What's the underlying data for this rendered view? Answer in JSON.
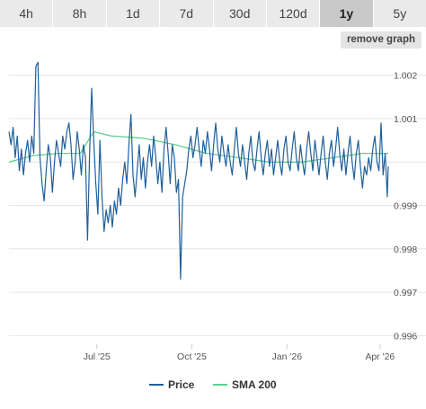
{
  "tabs": [
    {
      "label": "4h",
      "active": false
    },
    {
      "label": "8h",
      "active": false
    },
    {
      "label": "1d",
      "active": false
    },
    {
      "label": "7d",
      "active": false
    },
    {
      "label": "30d",
      "active": false
    },
    {
      "label": "120d",
      "active": false
    },
    {
      "label": "1y",
      "active": true
    },
    {
      "label": "5y",
      "active": false
    }
  ],
  "remove_graph_label": "remove graph",
  "colors": {
    "price": "#1f5f9a",
    "sma": "#5ed08f",
    "grid": "#e6e6e6"
  },
  "chart_data": {
    "type": "line",
    "title": "",
    "xlabel": "",
    "ylabel": "",
    "ylim": [
      0.9958,
      1.00245
    ],
    "xlim": [
      "2025-04-07",
      "2026-04-09"
    ],
    "y_ticks": [
      0.996,
      0.997,
      0.998,
      0.999,
      1.0,
      1.001,
      1.002
    ],
    "y_tick_labels": [
      "0.996",
      "0.997",
      "0.998",
      "0.999",
      "",
      "1.001",
      "1.002"
    ],
    "x_ticks": [
      {
        "date": "2025-07-01",
        "label": "Jul '25"
      },
      {
        "date": "2025-10-01",
        "label": "Oct '25"
      },
      {
        "date": "2026-01-01",
        "label": "Jan '26"
      },
      {
        "date": "2026-04-01",
        "label": "Apr '26"
      }
    ],
    "grid": true,
    "legend": "bottom",
    "series": [
      {
        "name": "Price",
        "points": [
          [
            "2025-04-07",
            1.0007
          ],
          [
            "2025-04-09",
            1.0004
          ],
          [
            "2025-04-11",
            1.0008
          ],
          [
            "2025-04-13",
            1.0001
          ],
          [
            "2025-04-15",
            1.0006
          ],
          [
            "2025-04-17",
            0.9998
          ],
          [
            "2025-04-19",
            1.0003
          ],
          [
            "2025-04-21",
            0.9997
          ],
          [
            "2025-04-23",
            1.0002
          ],
          [
            "2025-04-25",
            1.0005
          ],
          [
            "2025-04-27",
            1.0
          ],
          [
            "2025-04-29",
            1.0006
          ],
          [
            "2025-05-01",
            1.0002
          ],
          [
            "2025-05-03",
            1.0022
          ],
          [
            "2025-05-05",
            1.0023
          ],
          [
            "2025-05-07",
            1.0001
          ],
          [
            "2025-05-09",
            0.9995
          ],
          [
            "2025-05-11",
            0.9991
          ],
          [
            "2025-05-13",
            0.9998
          ],
          [
            "2025-05-15",
            1.0004
          ],
          [
            "2025-05-17",
            1.0001
          ],
          [
            "2025-05-19",
            0.9993
          ],
          [
            "2025-05-21",
            1.0
          ],
          [
            "2025-05-23",
            1.0005
          ],
          [
            "2025-05-25",
            1.0002
          ],
          [
            "2025-05-27",
            0.9999
          ],
          [
            "2025-05-29",
            1.0006
          ],
          [
            "2025-05-31",
            1.0003
          ],
          [
            "2025-06-02",
            1.0007
          ],
          [
            "2025-06-04",
            1.0009
          ],
          [
            "2025-06-06",
            1.0004
          ],
          [
            "2025-06-08",
            0.9996
          ],
          [
            "2025-06-10",
            1.0
          ],
          [
            "2025-06-12",
            1.0007
          ],
          [
            "2025-06-14",
            1.0003
          ],
          [
            "2025-06-16",
            0.9997
          ],
          [
            "2025-06-18",
            1.0004
          ],
          [
            "2025-06-20",
            1.0001
          ],
          [
            "2025-06-22",
            0.9982
          ],
          [
            "2025-06-24",
            1.0002
          ],
          [
            "2025-06-26",
            1.0017
          ],
          [
            "2025-06-28",
            1.0005
          ],
          [
            "2025-06-30",
            0.9995
          ],
          [
            "2025-07-02",
            0.9988
          ],
          [
            "2025-07-04",
            1.0005
          ],
          [
            "2025-07-06",
            0.9992
          ],
          [
            "2025-07-08",
            0.9984
          ],
          [
            "2025-07-10",
            0.9989
          ],
          [
            "2025-07-12",
            0.9986
          ],
          [
            "2025-07-14",
            0.999
          ],
          [
            "2025-07-16",
            0.9985
          ],
          [
            "2025-07-18",
            0.9991
          ],
          [
            "2025-07-20",
            0.9988
          ],
          [
            "2025-07-22",
            0.9994
          ],
          [
            "2025-07-24",
            0.999
          ],
          [
            "2025-07-26",
            0.9996
          ],
          [
            "2025-07-28",
            1.0
          ],
          [
            "2025-07-30",
            0.9995
          ],
          [
            "2025-08-01",
            1.0004
          ],
          [
            "2025-08-03",
            1.0011
          ],
          [
            "2025-08-05",
            0.9997
          ],
          [
            "2025-08-07",
            0.9992
          ],
          [
            "2025-08-09",
            0.9998
          ],
          [
            "2025-08-11",
            1.0004
          ],
          [
            "2025-08-13",
            0.9996
          ],
          [
            "2025-08-15",
            1.0001
          ],
          [
            "2025-08-17",
            0.9994
          ],
          [
            "2025-08-19",
            1.0
          ],
          [
            "2025-08-21",
            1.0004
          ],
          [
            "2025-08-23",
            0.9999
          ],
          [
            "2025-08-25",
            1.0006
          ],
          [
            "2025-08-27",
            1.0001
          ],
          [
            "2025-08-29",
            0.9995
          ],
          [
            "2025-08-31",
            1.0
          ],
          [
            "2025-09-02",
            0.9993
          ],
          [
            "2025-09-04",
            1.0003
          ],
          [
            "2025-09-06",
            1.0008
          ],
          [
            "2025-09-08",
            1.0002
          ],
          [
            "2025-09-10",
            0.9995
          ],
          [
            "2025-09-12",
            1.0004
          ],
          [
            "2025-09-14",
            1.0001
          ],
          [
            "2025-09-16",
            0.9993
          ],
          [
            "2025-09-18",
            0.9996
          ],
          [
            "2025-09-20",
            0.9973
          ],
          [
            "2025-09-22",
            0.9992
          ],
          [
            "2025-09-24",
            0.9995
          ],
          [
            "2025-09-26",
            0.9998
          ],
          [
            "2025-09-28",
            1.0003
          ],
          [
            "2025-09-30",
            1.0006
          ],
          [
            "2025-10-02",
            1.0001
          ],
          [
            "2025-10-04",
            1.0004
          ],
          [
            "2025-10-06",
            1.0008
          ],
          [
            "2025-10-08",
            1.0003
          ],
          [
            "2025-10-10",
            0.9999
          ],
          [
            "2025-10-12",
            1.0005
          ],
          [
            "2025-10-14",
            1.0002
          ],
          [
            "2025-10-16",
            1.0007
          ],
          [
            "2025-10-18",
            1.0003
          ],
          [
            "2025-10-20",
            0.9998
          ],
          [
            "2025-10-22",
            1.0004
          ],
          [
            "2025-10-24",
            1.0009
          ],
          [
            "2025-10-26",
            1.0003
          ],
          [
            "2025-10-28",
            1.0
          ],
          [
            "2025-10-30",
            1.0006
          ],
          [
            "2025-11-01",
            1.0002
          ],
          [
            "2025-11-03",
            0.9999
          ],
          [
            "2025-11-05",
            1.0004
          ],
          [
            "2025-11-07",
            1.0
          ],
          [
            "2025-11-09",
            0.9997
          ],
          [
            "2025-11-11",
            1.0003
          ],
          [
            "2025-11-13",
            1.0008
          ],
          [
            "2025-11-15",
            1.0002
          ],
          [
            "2025-11-17",
            0.9999
          ],
          [
            "2025-11-19",
            1.0004
          ],
          [
            "2025-11-21",
            1.0
          ],
          [
            "2025-11-23",
            0.9996
          ],
          [
            "2025-11-25",
            1.0002
          ],
          [
            "2025-11-27",
            1.0006
          ],
          [
            "2025-11-29",
            1.0
          ],
          [
            "2025-12-01",
            0.9998
          ],
          [
            "2025-12-03",
            1.0003
          ],
          [
            "2025-12-05",
            1.0007
          ],
          [
            "2025-12-07",
            1.0001
          ],
          [
            "2025-12-09",
            0.9997
          ],
          [
            "2025-12-11",
            1.0002
          ],
          [
            "2025-12-13",
            1.0005
          ],
          [
            "2025-12-15",
            0.9999
          ],
          [
            "2025-12-17",
            1.0003
          ],
          [
            "2025-12-19",
            0.9997
          ],
          [
            "2025-12-21",
            1.0001
          ],
          [
            "2025-12-23",
            1.0005
          ],
          [
            "2025-12-25",
            1.0
          ],
          [
            "2025-12-27",
            0.9997
          ],
          [
            "2025-12-29",
            1.0003
          ],
          [
            "2025-12-31",
            1.0006
          ],
          [
            "2026-01-02",
            1.0
          ],
          [
            "2026-01-04",
            0.9998
          ],
          [
            "2026-01-06",
            1.0003
          ],
          [
            "2026-01-08",
            1.0007
          ],
          [
            "2026-01-10",
            1.0001
          ],
          [
            "2026-01-12",
            0.9998
          ],
          [
            "2026-01-14",
            1.0004
          ],
          [
            "2026-01-16",
            1.0
          ],
          [
            "2026-01-18",
            0.9997
          ],
          [
            "2026-01-20",
            1.0003
          ],
          [
            "2026-01-22",
            1.0007
          ],
          [
            "2026-01-24",
            1.0002
          ],
          [
            "2026-01-26",
            0.9998
          ],
          [
            "2026-01-28",
            1.0005
          ],
          [
            "2026-01-30",
            1.0001
          ],
          [
            "2026-02-01",
            0.9997
          ],
          [
            "2026-02-03",
            1.0002
          ],
          [
            "2026-02-05",
            1.0006
          ],
          [
            "2026-02-07",
            1.0
          ],
          [
            "2026-02-09",
            0.9996
          ],
          [
            "2026-02-11",
            1.0002
          ],
          [
            "2026-02-13",
            1.0005
          ],
          [
            "2026-02-15",
            0.9999
          ],
          [
            "2026-02-17",
            1.0003
          ],
          [
            "2026-02-19",
            1.0008
          ],
          [
            "2026-02-21",
            1.0002
          ],
          [
            "2026-02-23",
            0.9998
          ],
          [
            "2026-02-25",
            1.0003
          ],
          [
            "2026-02-27",
            0.9997
          ],
          [
            "2026-03-01",
            1.0002
          ],
          [
            "2026-03-03",
            1.0006
          ],
          [
            "2026-03-05",
            1.0
          ],
          [
            "2026-03-07",
            0.9996
          ],
          [
            "2026-03-09",
            1.0002
          ],
          [
            "2026-03-11",
            1.0005
          ],
          [
            "2026-03-13",
            0.9999
          ],
          [
            "2026-03-15",
            0.9994
          ],
          [
            "2026-03-17",
            0.9999
          ],
          [
            "2026-03-19",
            0.9997
          ],
          [
            "2026-03-21",
            1.0001
          ],
          [
            "2026-03-23",
            0.9998
          ],
          [
            "2026-03-25",
            1.0003
          ],
          [
            "2026-03-27",
            1.0006
          ],
          [
            "2026-03-29",
            1.0
          ],
          [
            "2026-03-31",
            0.9998
          ],
          [
            "2026-04-02",
            1.0009
          ],
          [
            "2026-04-04",
            0.9997
          ],
          [
            "2026-04-06",
            1.0002
          ],
          [
            "2026-04-08",
            0.9992
          ],
          [
            "2026-04-09",
            0.9999
          ]
        ]
      },
      {
        "name": "SMA 200",
        "points": [
          [
            "2025-04-07",
            1.0
          ],
          [
            "2025-05-01",
            1.00015
          ],
          [
            "2025-05-25",
            1.0002
          ],
          [
            "2025-06-15",
            1.0002
          ],
          [
            "2025-06-28",
            1.0007
          ],
          [
            "2025-07-15",
            1.0006
          ],
          [
            "2025-08-15",
            1.00055
          ],
          [
            "2025-09-15",
            1.0004
          ],
          [
            "2025-10-15",
            1.0002
          ],
          [
            "2025-11-15",
            1.0001
          ],
          [
            "2025-12-15",
            1.0
          ],
          [
            "2026-01-15",
            1.0
          ],
          [
            "2026-02-15",
            1.0001
          ],
          [
            "2026-03-15",
            1.0002
          ],
          [
            "2026-04-09",
            1.0002
          ]
        ]
      }
    ]
  }
}
